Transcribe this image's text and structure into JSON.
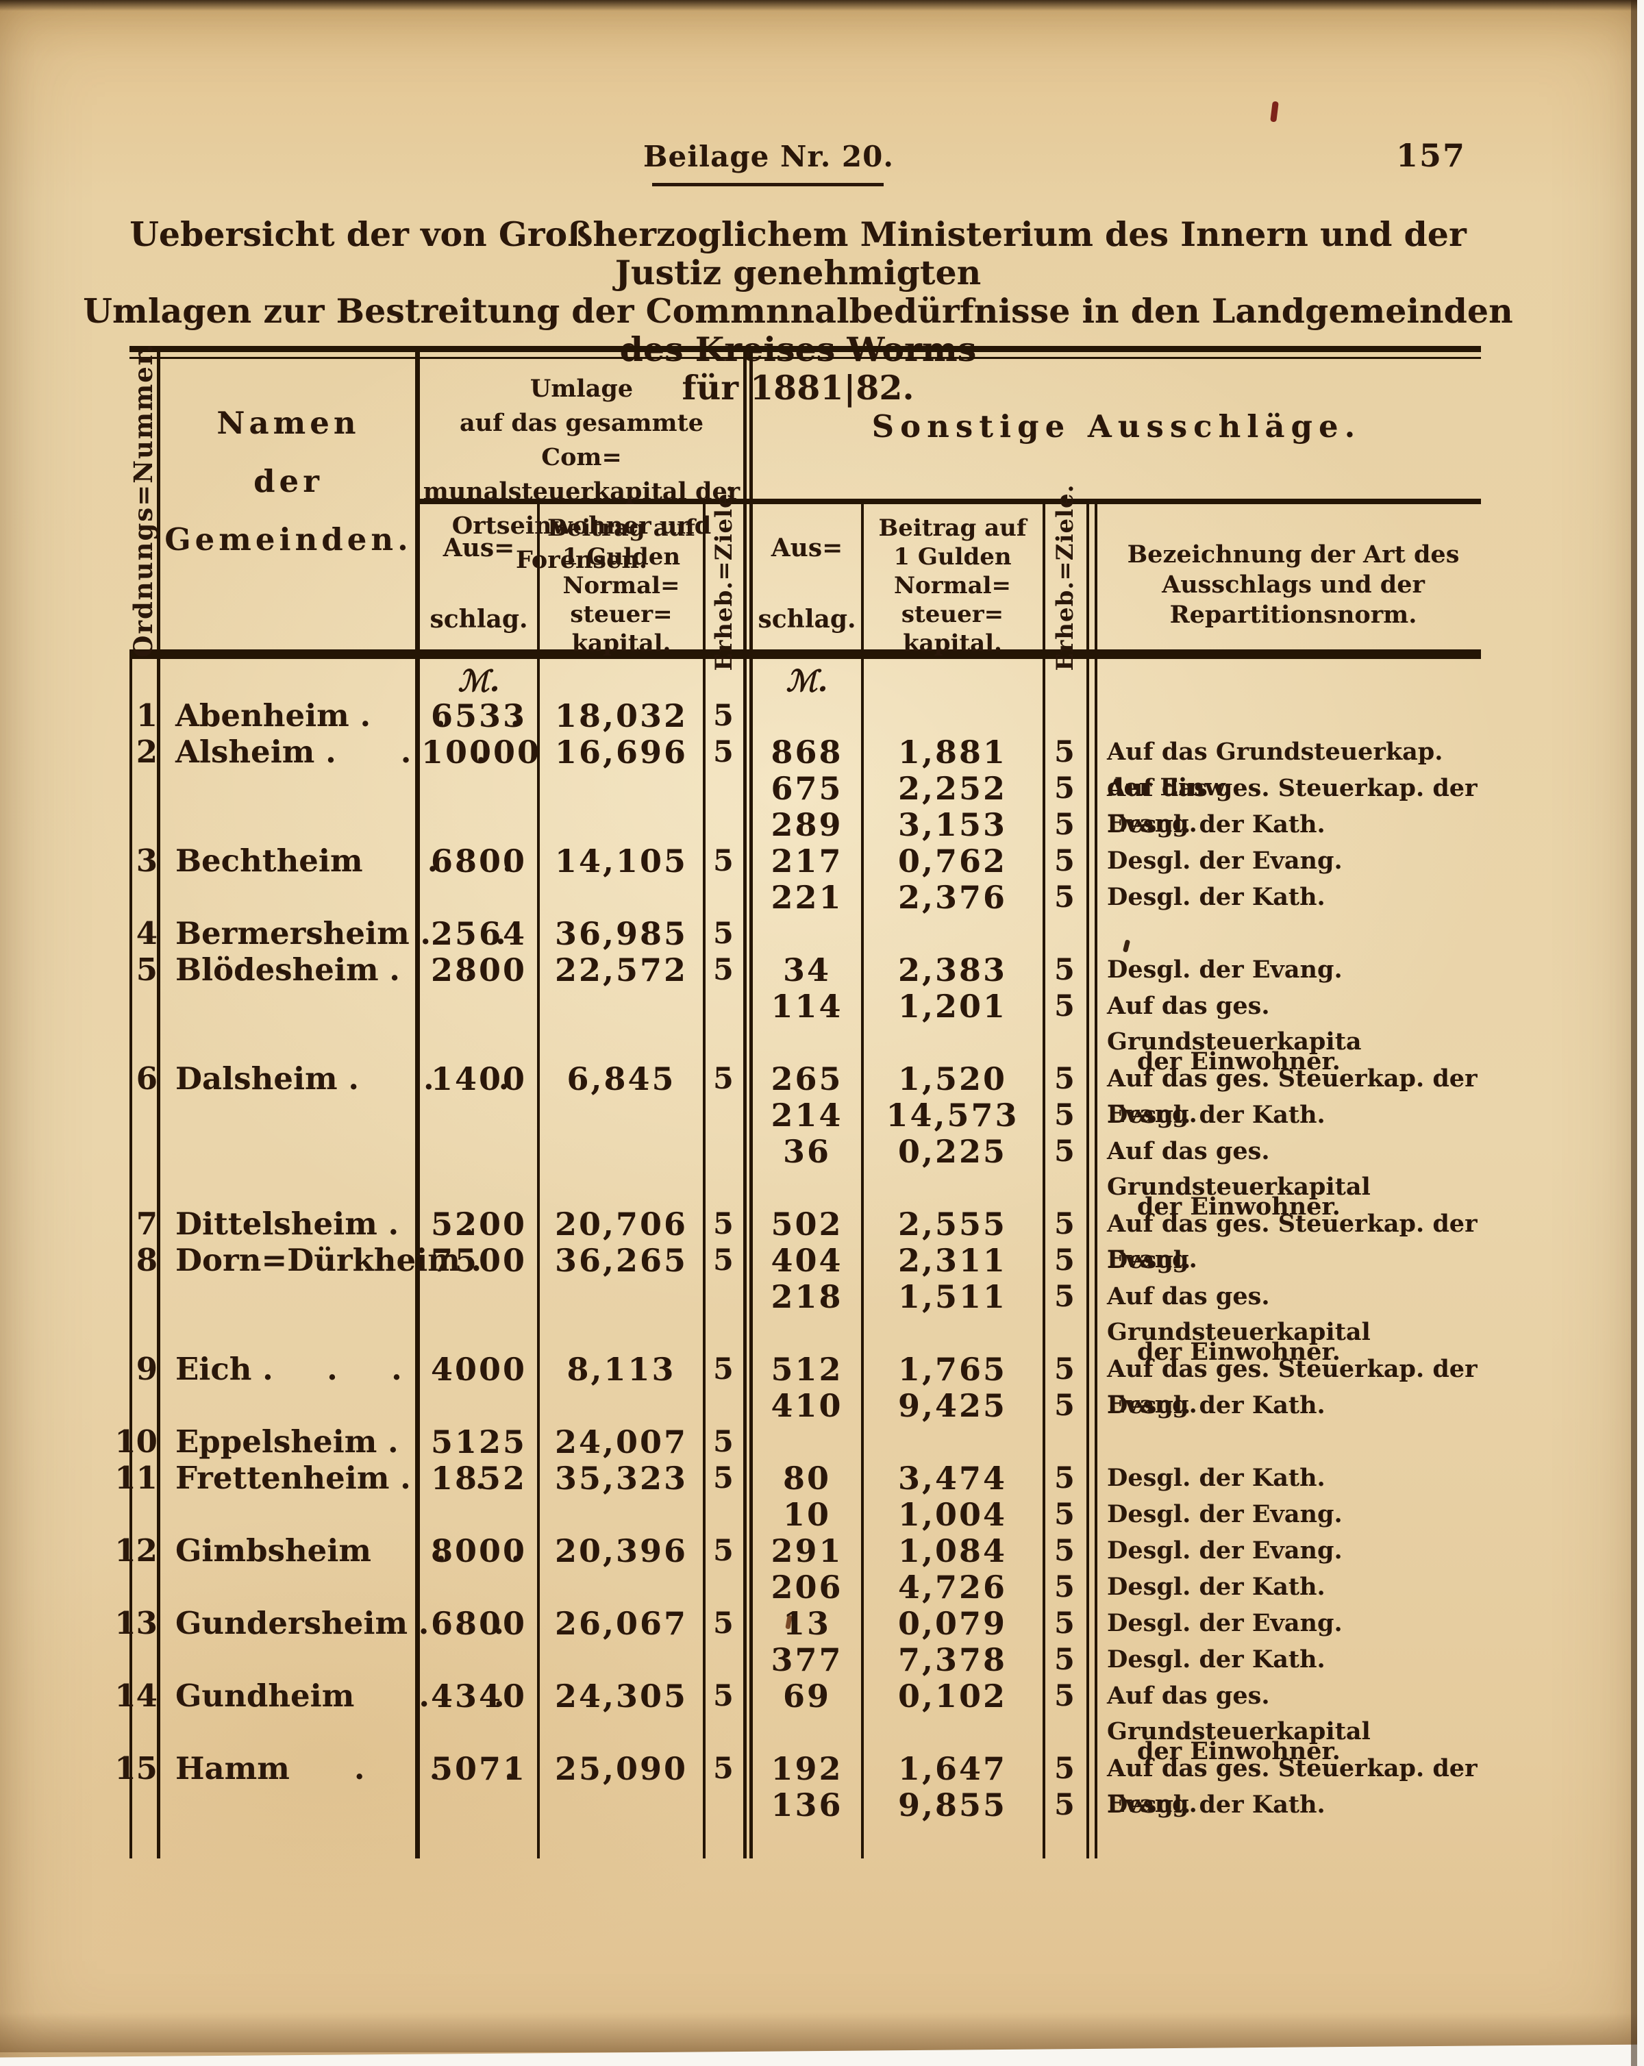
{
  "page": {
    "heading": "Beilage Nr. 20.",
    "page_number": "157",
    "title_line1": "Uebersicht der von Großherzoglichem Ministerium des Innern und der Justiz genehmigten",
    "title_line2": "Umlagen zur Bestreitung der Commnnalbedürfnisse in den Landgemeinden des Kreises Worms",
    "title_line3": "für 1881|82."
  },
  "colors": {
    "paper": "#e8d2a4",
    "ink": "#2a170a",
    "scan_edge_white": "#f8f6f1",
    "red_fleck": "#7d241a"
  },
  "table": {
    "currency_symbol": "ℳ.",
    "header": {
      "ordnungs_nummer": "Ordnungs=Nummer.",
      "namen": "Namen\nder\nGemeinden.",
      "umlage_group": "Umlage\nauf das gesammte Com=\nmunalsteuerkapital der\nOrtseinwohner und\nForensen.",
      "sonstige_group": "Sonstige Ausschläge.",
      "ausschlag": "Aus=\nschlag.",
      "beitrag": "Beitrag auf\n1 Gulden\nNormal=\nsteuer=\nkapital.",
      "erheb_ziele": "Erheb.=Ziele.",
      "bezeichnung": "Bezeichnung der Art des\nAusschlags und der\nRepartitionsnorm."
    },
    "rows": [
      {
        "num": "1",
        "name": "Abenheim .      .      .",
        "a1": "6533",
        "b1": "18,032",
        "z1": "5"
      },
      {
        "num": "2",
        "name": "Alsheim .      .      .",
        "a1": "10000",
        "b1": "16,696",
        "z1": "5",
        "a2": "868",
        "b2": "1,881",
        "z2": "5",
        "bez": "Auf das Grundsteuerkap. der Einw."
      },
      {
        "a2": "675",
        "b2": "2,252",
        "z2": "5",
        "bez": "Auf das ges. Steuerkap. der Evang."
      },
      {
        "a2": "289",
        "b2": "3,153",
        "z2": "5",
        "bez": "Desgl. der Kath."
      },
      {
        "num": "3",
        "name": "Bechtheim      .      .",
        "a1": "6800",
        "b1": "14,105",
        "z1": "5",
        "a2": "217",
        "b2": "0,762",
        "z2": "5",
        "bez": "Desgl. der Evang."
      },
      {
        "a2": "221",
        "b2": "2,376",
        "z2": "5",
        "bez": "Desgl. der Kath."
      },
      {
        "num": "4",
        "name": "Bermersheim .      .",
        "a1": "2564",
        "b1": "36,985",
        "z1": "5"
      },
      {
        "num": "5",
        "name": "Blödesheim .      .",
        "a1": "2800",
        "b1": "22,572",
        "z1": "5",
        "a2": "34",
        "b2": "2,383",
        "z2": "5",
        "bez": "Desgl. der Evang."
      },
      {
        "a2": "114",
        "b2": "1,201",
        "z2": "5",
        "bez": "Auf das ges. Grundsteuerkapita",
        "bez2": "der Einwohner."
      },
      {
        "num": "6",
        "name": "Dalsheim .      .      .",
        "a1": "1400",
        "b1": "6,845",
        "z1": "5",
        "a2": "265",
        "b2": "1,520",
        "z2": "5",
        "bez": "Auf das ges. Steuerkap. der Evang."
      },
      {
        "a2": "214",
        "b2": "14,573",
        "z2": "5",
        "bez": "Desgl. der Kath."
      },
      {
        "a2": "36",
        "b2": "0,225",
        "z2": "5",
        "bez": "Auf das ges. Grundsteuerkapital",
        "bez2": "der Einwohner."
      },
      {
        "num": "7",
        "name": "Dittelsheim .      .",
        "a1": "5200",
        "b1": "20,706",
        "z1": "5",
        "a2": "502",
        "b2": "2,555",
        "z2": "5",
        "bez": "Auf das ges. Steuerkap. der Evang."
      },
      {
        "num": "8",
        "name": "Dorn=Dürkheim .",
        "a1": "7500",
        "b1": "36,265",
        "z1": "5",
        "a2": "404",
        "b2": "2,311",
        "z2": "5",
        "bez": "Desgl."
      },
      {
        "a2": "218",
        "b2": "1,511",
        "z2": "5",
        "bez": "Auf das ges. Grundsteuerkapital",
        "bez2": "der Einwohner."
      },
      {
        "num": "9",
        "name": "Eich .     .     .     .",
        "a1": "4000",
        "b1": "8,113",
        "z1": "5",
        "a2": "512",
        "b2": "1,765",
        "z2": "5",
        "bez": "Auf das ges. Steuerkap. der Evang."
      },
      {
        "a2": "410",
        "b2": "9,425",
        "z2": "5",
        "bez": "Desgl. der Kath."
      },
      {
        "num": "10",
        "name": "Eppelsheim .      .",
        "a1": "5125",
        "b1": "24,007",
        "z1": "5"
      },
      {
        "num": "11",
        "name": "Frettenheim .      .",
        "a1": "1852",
        "b1": "35,323",
        "z1": "5",
        "a2": "80",
        "b2": "3,474",
        "z2": "5",
        "bez": "Desgl. der Kath."
      },
      {
        "a2": "10",
        "b2": "1,004",
        "z2": "5",
        "bez": "Desgl. der Evang."
      },
      {
        "num": "12",
        "name": "Gimbsheim      .      .",
        "a1": "8000",
        "b1": "20,396",
        "z1": "5",
        "a2": "291",
        "b2": "1,084",
        "z2": "5",
        "bez": "Desgl. der Evang."
      },
      {
        "a2": "206",
        "b2": "4,726",
        "z2": "5",
        "bez": "Desgl. der Kath."
      },
      {
        "num": "13",
        "name": "Gundersheim .      .",
        "a1": "6800",
        "b1": "26,067",
        "z1": "5",
        "a2": "13",
        "b2": "0,079",
        "z2": "5",
        "bez": "Desgl. der Evang."
      },
      {
        "a2": "377",
        "b2": "7,378",
        "z2": "5",
        "bez": "Desgl. der Kath."
      },
      {
        "num": "14",
        "name": "Gundheim      .      .",
        "a1": "4340",
        "b1": "24,305",
        "z1": "5",
        "a2": "69",
        "b2": "0,102",
        "z2": "5",
        "bez": "Auf das ges. Grundsteuerkapital",
        "bez2": "der Einwohner."
      },
      {
        "num": "15",
        "name": "Hamm      .      .      .",
        "a1": "5071",
        "b1": "25,090",
        "z1": "5",
        "a2": "192",
        "b2": "1,647",
        "z2": "5",
        "bez": "Auf das ges. Steuerkap. der Evang."
      },
      {
        "a2": "136",
        "b2": "9,855",
        "z2": "5",
        "bez": "Desgl. der Kath."
      }
    ]
  }
}
